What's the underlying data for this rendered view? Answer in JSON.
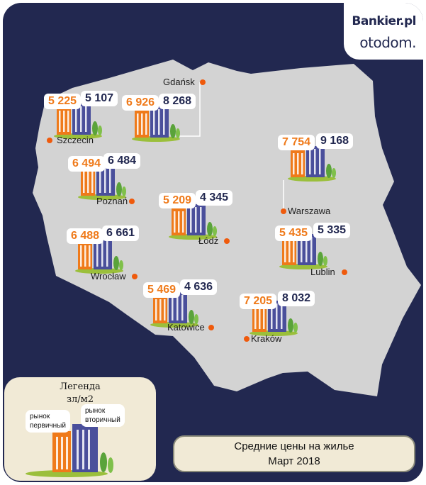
{
  "brand": {
    "name": "Bankier.pl",
    "partner": "otodom."
  },
  "colors": {
    "primary": "#ef7a1a",
    "secondary": "#4a4f9b",
    "background": "#222850",
    "land": "#d3d3d3",
    "marker": "#ef5a0c"
  },
  "cities": [
    {
      "name": "Gdańsk",
      "primary": "6 926",
      "secondary": "8 268"
    },
    {
      "name": "Szczecin",
      "primary": "5 225",
      "secondary": "5 107"
    },
    {
      "name": "Poznań",
      "primary": "6 494",
      "secondary": "6 484"
    },
    {
      "name": "Warszawa",
      "primary": "7 754",
      "secondary": "9 168"
    },
    {
      "name": "Łódź",
      "primary": "5 209",
      "secondary": "4 345"
    },
    {
      "name": "Lublin",
      "primary": "5 435",
      "secondary": "5 335"
    },
    {
      "name": "Wrocław",
      "primary": "6 488",
      "secondary": "6 661"
    },
    {
      "name": "Katowice",
      "primary": "5 469",
      "secondary": "4 636"
    },
    {
      "name": "Kraków",
      "primary": "7 205",
      "secondary": "8 032"
    }
  ],
  "legend": {
    "title": "Легенда",
    "unit": "зл/м2",
    "primary_label": "рынок\nпервичный",
    "secondary_label": "рынок\nвторичный"
  },
  "caption": {
    "line1": "Средние цены на жилье",
    "line2": "Март 2018"
  }
}
